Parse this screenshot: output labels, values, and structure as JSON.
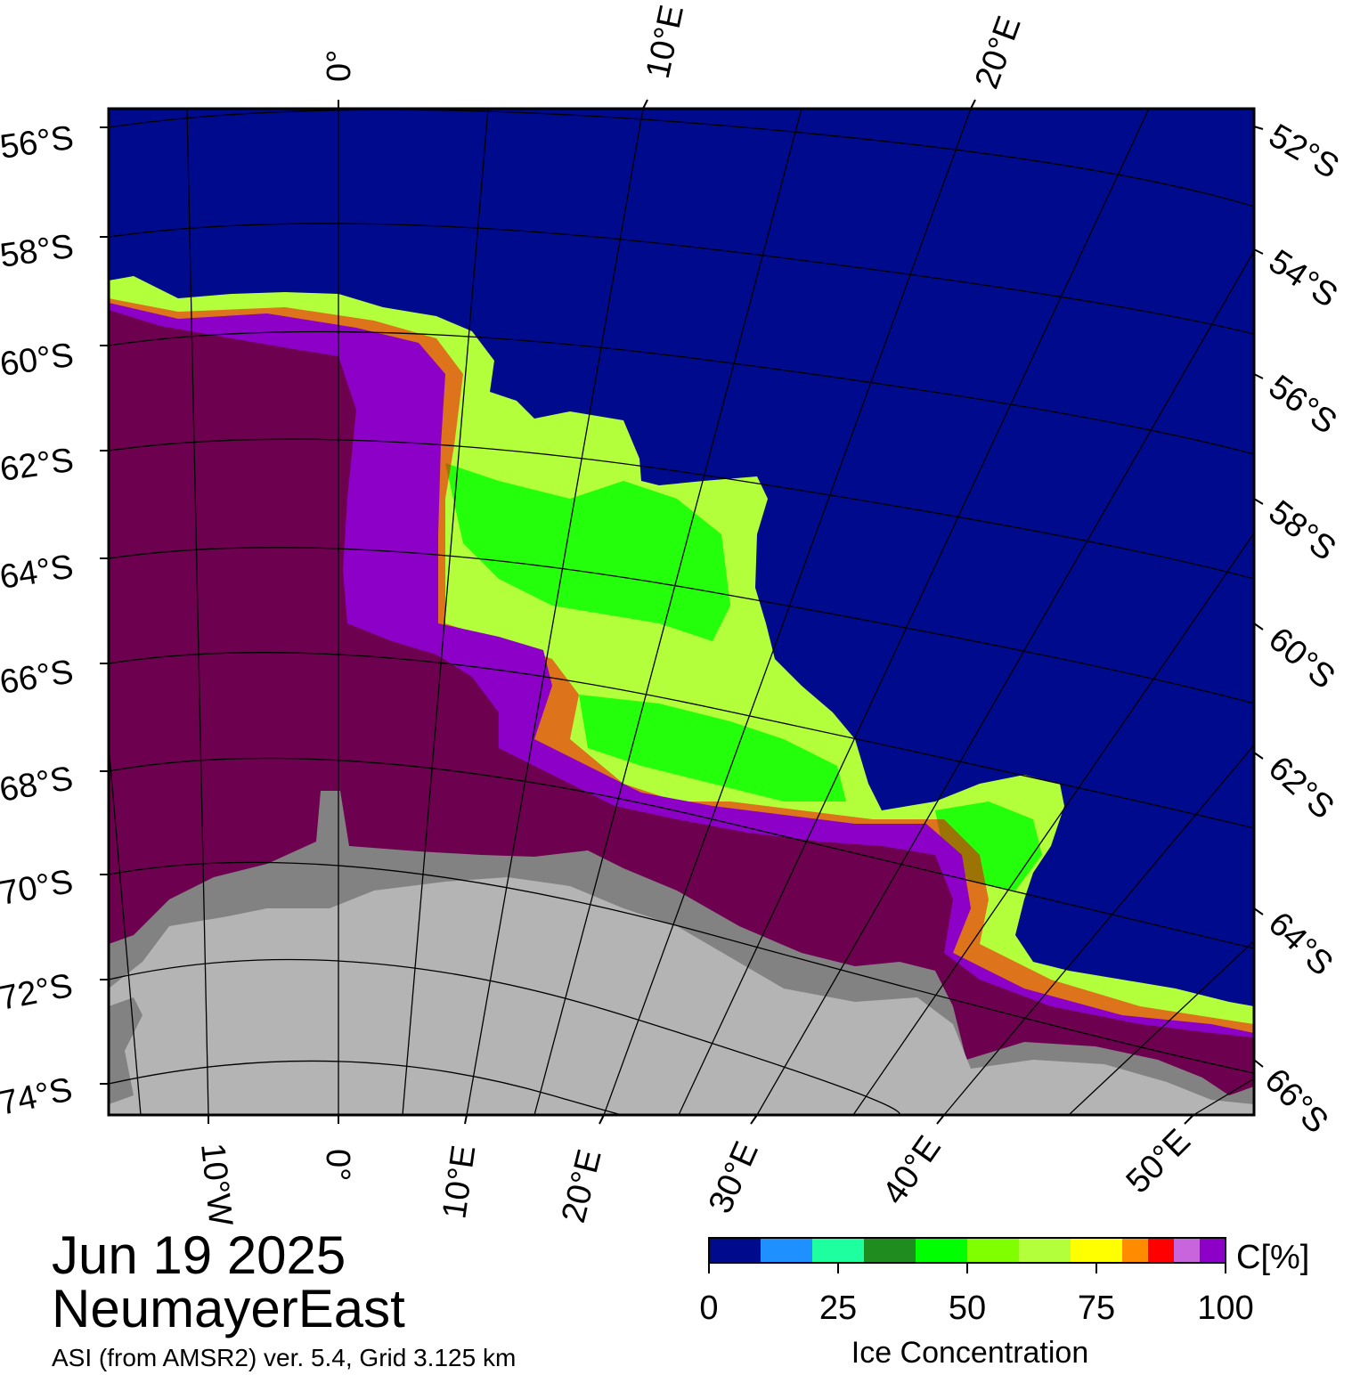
{
  "title": {
    "date": "Jun 19 2025",
    "region": "NeumayerEast",
    "source": "ASI (from AMSR2) ver. 5.4,  Grid 3.125 km"
  },
  "axes": {
    "top_lon_labels": [
      "0°",
      "10°E",
      "20°E"
    ],
    "bottom_lon_labels": [
      "10°W",
      "0°",
      "10°E",
      "20°E",
      "30°E",
      "40°E",
      "50°E"
    ],
    "left_lat_labels": [
      "56°S",
      "58°S",
      "60°S",
      "62°S",
      "64°S",
      "66°S",
      "68°S",
      "70°S",
      "72°S",
      "74°S"
    ],
    "right_lat_labels": [
      "52°S",
      "54°S",
      "56°S",
      "58°S",
      "60°S",
      "62°S",
      "64°S",
      "66°S"
    ]
  },
  "colorbar": {
    "unit_label": "C[%]",
    "title": "Ice Concentration",
    "ticks": [
      "0",
      "25",
      "50",
      "75",
      "100"
    ],
    "colors": [
      "#000a8c",
      "#1e90ff",
      "#1effa0",
      "#1e8c1e",
      "#00ff00",
      "#7fff00",
      "#b4ff3c",
      "#ffff00",
      "#ff8c00",
      "#ff0000",
      "#c864dc",
      "#8c00c8"
    ]
  },
  "map_colors": {
    "open_water": "#000a8c",
    "full_ice": "#6e0050",
    "dense_ice": "#8c00c8",
    "land": "#b4b4b4",
    "ice_shelf": "#828282"
  }
}
